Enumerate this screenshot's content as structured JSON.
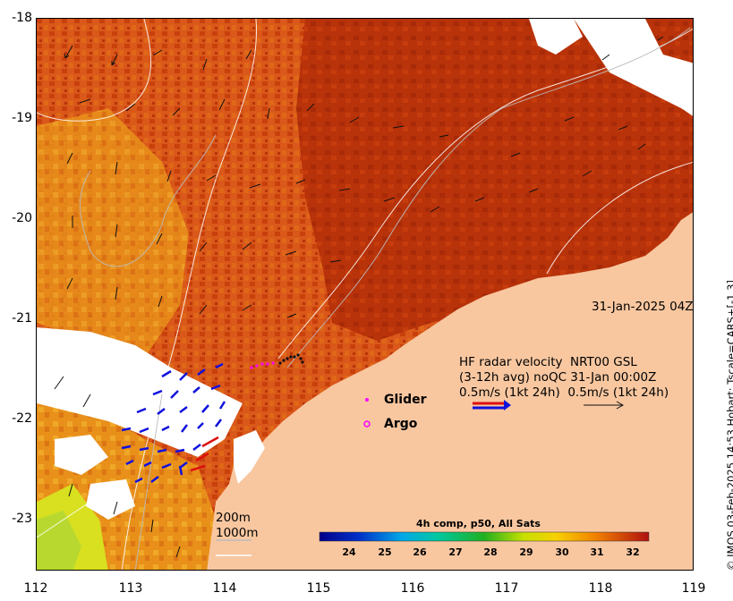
{
  "map": {
    "lat_labels": [
      "-18",
      "-19",
      "-20",
      "-21",
      "-22",
      "-23"
    ],
    "lon_labels": [
      "112",
      "113",
      "114",
      "115",
      "116",
      "117",
      "118",
      "119"
    ],
    "date_label": "31-Jan-2025 04Z",
    "legend": {
      "line1": "HF radar velocity  NRT00 GSL",
      "line2": "(3-12h avg) noQC 31-Jan 00:00Z",
      "line3": "0.5m/s (1kt 24h)  0.5m/s (1kt 24h)",
      "glider": "Glider",
      "argo": "Argo"
    },
    "depth_labels": {
      "d200": "200m",
      "d1000": "1000m"
    },
    "colorbar": {
      "title": "4h comp, p50, All Sats",
      "ticks": [
        "24",
        "25",
        "26",
        "27",
        "28",
        "29",
        "30",
        "31",
        "32"
      ]
    },
    "side_caption": "© IMOS 03-Feb-2025 14:53 Hobart; Tscale=CARS+[-1 3]",
    "colors": {
      "land": "#f8c7a0",
      "sst_warm": "#c0380a",
      "sst_mid": "#e07010",
      "sst_cool": "#f0a020",
      "radar_blue": "#1010dd",
      "radar_red": "#dd1010",
      "glider": "#ff00ff"
    }
  }
}
